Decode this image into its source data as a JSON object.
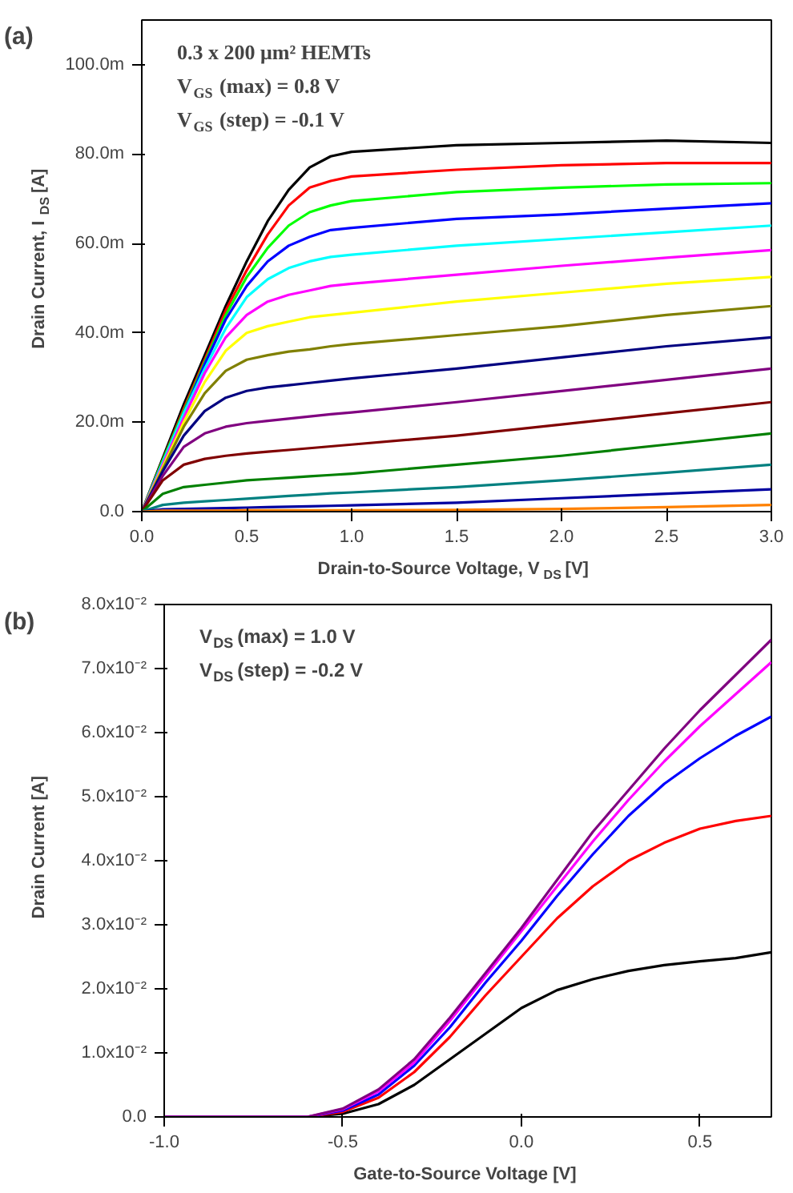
{
  "chart_data": [
    {
      "type": "line",
      "xlabel": "Drain-to-Source Voltage, V$_{DS}$ [V]",
      "ylabel": "Drain Current, I$_{DS}$ [A]",
      "annotations": [
        "(a)",
        "0.3 x 200 μm² HEMTs",
        "V$_{GS}$ (max) = 0.8 V",
        "V$_{GS}$ (step) = -0.1 V"
      ],
      "x": [
        0,
        0.1,
        0.2,
        0.3,
        0.4,
        0.5,
        0.6,
        0.7,
        0.8,
        0.9,
        1.0,
        1.5,
        2.0,
        2.5,
        3.0
      ],
      "xlim": [
        0,
        3
      ],
      "xticks": [
        {
          "value": 0,
          "label": "0.0"
        },
        0.5,
        {
          "value": 1,
          "label": "1.0"
        },
        1.5,
        {
          "value": 2,
          "label": "2.0"
        },
        2.5,
        {
          "value": 3,
          "label": "3.0"
        }
      ],
      "ylim": [
        0,
        110
      ],
      "yticks": [
        {
          "value": 0,
          "label": "0.0"
        },
        {
          "value": 20,
          "label": "20.0m"
        },
        {
          "value": 40,
          "label": "40.0m"
        },
        {
          "value": 60,
          "label": "60.0m"
        },
        {
          "value": 80,
          "label": "80.0m"
        },
        {
          "value": 100,
          "label": "100.0m"
        }
      ],
      "grid": false,
      "marker": "none",
      "line_style": "solid",
      "series": [
        {
          "color": "#000000",
          "values": [
            0,
            12,
            24,
            35,
            46,
            56,
            65,
            72,
            77,
            79.5,
            80.5,
            82,
            82.5,
            83,
            82.5
          ]
        },
        {
          "color": "#ff0000",
          "values": [
            0,
            11.5,
            23,
            34,
            45,
            54,
            62,
            68.5,
            72.5,
            74,
            75,
            76.5,
            77.5,
            78,
            78
          ]
        },
        {
          "color": "#00ff00",
          "values": [
            0,
            11.5,
            22.5,
            33.5,
            44,
            52.5,
            59,
            64,
            67,
            68.5,
            69.5,
            71.5,
            72.5,
            73.2,
            73.5
          ]
        },
        {
          "color": "#0000ff",
          "values": [
            0,
            11,
            22,
            33,
            43,
            50.5,
            56,
            59.5,
            61.5,
            63,
            63.5,
            65.5,
            66.5,
            67.8,
            69
          ]
        },
        {
          "color": "#00ffff",
          "values": [
            0,
            11,
            22,
            32,
            41,
            48,
            52,
            54.5,
            56,
            57,
            57.5,
            59.5,
            61,
            62.5,
            64
          ]
        },
        {
          "color": "#ff00ff",
          "values": [
            0,
            10.5,
            21,
            31,
            39,
            44,
            47,
            48.5,
            49.5,
            50.5,
            51,
            53,
            55,
            56.8,
            58.5
          ]
        },
        {
          "color": "#ffff00",
          "values": [
            0,
            10,
            20,
            29,
            36,
            40,
            41.5,
            42.5,
            43.5,
            44,
            44.5,
            47,
            49,
            51,
            52.5
          ]
        },
        {
          "color": "#808000",
          "values": [
            0,
            9.5,
            19,
            26.5,
            31.5,
            34,
            35,
            35.8,
            36.3,
            37,
            37.5,
            39.5,
            41.5,
            44,
            46
          ]
        },
        {
          "color": "#000080",
          "values": [
            0,
            9,
            17,
            22.5,
            25.5,
            27,
            27.8,
            28.3,
            28.8,
            29.3,
            29.8,
            32,
            34.5,
            37,
            39
          ]
        },
        {
          "color": "#800080",
          "values": [
            0,
            8,
            14.5,
            17.5,
            19,
            19.8,
            20.3,
            20.8,
            21.3,
            21.8,
            22.2,
            24.5,
            27,
            29.5,
            32
          ]
        },
        {
          "color": "#800000",
          "values": [
            0,
            7,
            10.5,
            11.8,
            12.5,
            13,
            13.4,
            13.8,
            14.2,
            14.6,
            15,
            17,
            19.5,
            22,
            24.5
          ]
        },
        {
          "color": "#008000",
          "values": [
            0,
            4,
            5.5,
            6,
            6.5,
            7,
            7.3,
            7.6,
            7.9,
            8.2,
            8.5,
            10.5,
            12.5,
            15,
            17.5
          ]
        },
        {
          "color": "#008080",
          "values": [
            0,
            1.5,
            2,
            2.3,
            2.6,
            2.9,
            3.2,
            3.5,
            3.8,
            4.1,
            4.3,
            5.5,
            7,
            8.7,
            10.5
          ]
        },
        {
          "color": "#0000a0",
          "values": [
            0,
            0.5,
            0.6,
            0.7,
            0.8,
            0.9,
            1,
            1.1,
            1.2,
            1.3,
            1.4,
            2,
            3,
            4,
            5
          ]
        },
        {
          "color": "#ff8000",
          "values": [
            0,
            0.2,
            0.2,
            0.2,
            0.2,
            0.3,
            0.3,
            0.3,
            0.3,
            0.3,
            0.3,
            0.4,
            0.6,
            1,
            1.5
          ]
        }
      ]
    },
    {
      "type": "line",
      "xlabel": "Gate-to-Source Voltage [V]",
      "ylabel": "Drain Current [A]",
      "annotations": [
        "(b)",
        "V$_{DS}$(max) = 1.0 V",
        "V$_{DS}$(step) = -0.2 V"
      ],
      "x": [
        -1,
        -0.6,
        -0.5,
        -0.4,
        -0.3,
        -0.2,
        -0.1,
        0,
        0.1,
        0.2,
        0.3,
        0.4,
        0.5,
        0.6,
        0.7
      ],
      "xlim": [
        -1,
        0.7
      ],
      "xticks": [
        {
          "value": -1,
          "label": "-1.0"
        },
        -0.5,
        {
          "value": 0,
          "label": "0.0"
        },
        0.5
      ],
      "ylim": [
        0,
        0.08
      ],
      "yticks": [
        {
          "value": 0,
          "label": "0.0"
        },
        {
          "value": 0.01,
          "label": "1.0x10⁻²"
        },
        {
          "value": 0.02,
          "label": "2.0x10⁻²"
        },
        {
          "value": 0.03,
          "label": "3.0x10⁻²"
        },
        {
          "value": 0.04,
          "label": "4.0x10⁻²"
        },
        {
          "value": 0.05,
          "label": "5.0x10⁻²"
        },
        {
          "value": 0.06,
          "label": "6.0x10⁻²"
        },
        {
          "value": 0.07,
          "label": "7.0x10⁻²"
        },
        {
          "value": 0.08,
          "label": "8.0x10⁻²"
        }
      ],
      "grid": false,
      "marker": "none",
      "line_style": "solid",
      "series": [
        {
          "color": "#000000",
          "values": [
            0,
            0,
            0.0005,
            0.002,
            0.005,
            0.009,
            0.013,
            0.017,
            0.0198,
            0.0215,
            0.0228,
            0.0237,
            0.0243,
            0.0248,
            0.0257
          ]
        },
        {
          "color": "#ff0000",
          "values": [
            0,
            0,
            0.0008,
            0.003,
            0.007,
            0.0125,
            0.019,
            0.025,
            0.031,
            0.036,
            0.04,
            0.0428,
            0.045,
            0.0462,
            0.047
          ]
        },
        {
          "color": "#0000ff",
          "values": [
            0,
            0,
            0.001,
            0.0035,
            0.008,
            0.014,
            0.021,
            0.0275,
            0.0345,
            0.041,
            0.047,
            0.052,
            0.056,
            0.0595,
            0.0625
          ]
        },
        {
          "color": "#ff00ff",
          "values": [
            0,
            0,
            0.0012,
            0.004,
            0.0085,
            0.015,
            0.022,
            0.029,
            0.036,
            0.043,
            0.0495,
            0.0555,
            0.061,
            0.066,
            0.071
          ]
        },
        {
          "color": "#800080",
          "values": [
            0,
            0,
            0.0013,
            0.0043,
            0.009,
            0.0155,
            0.0225,
            0.0295,
            0.037,
            0.0445,
            0.051,
            0.0575,
            0.0635,
            0.069,
            0.0745
          ]
        }
      ]
    }
  ]
}
